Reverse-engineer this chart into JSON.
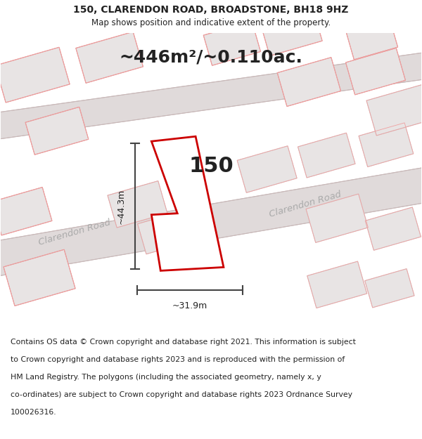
{
  "title_line1": "150, CLARENDON ROAD, BROADSTONE, BH18 9HZ",
  "title_line2": "Map shows position and indicative extent of the property.",
  "area_text": "~446m²/~0.110ac.",
  "label_150": "150",
  "dim_vertical": "~44.3m",
  "dim_horizontal": "~31.9m",
  "road_label_lower": "Clarendon Road",
  "road_label_upper": "Clarendon Road",
  "footer_lines": [
    "Contains OS data © Crown copyright and database right 2021. This information is subject",
    "to Crown copyright and database rights 2023 and is reproduced with the permission of",
    "HM Land Registry. The polygons (including the associated geometry, namely x, y",
    "co-ordinates) are subject to Crown copyright and database rights 2023 Ordnance Survey",
    "100026316."
  ],
  "map_bg": "#f7f2f2",
  "header_bg": "#ffffff",
  "footer_bg": "#ffffff",
  "building_fill": "#e8e4e4",
  "building_edge": "#c8b8b8",
  "highlight_fill": "#ffffff",
  "highlight_edge": "#cc0000",
  "road_fill": "#e0dada",
  "road_line": "#c8b8b8",
  "plot_line_pink": "#f0a0a0",
  "dim_line_color": "#444444",
  "road_label_color": "#aaaaaa",
  "text_color": "#222222"
}
